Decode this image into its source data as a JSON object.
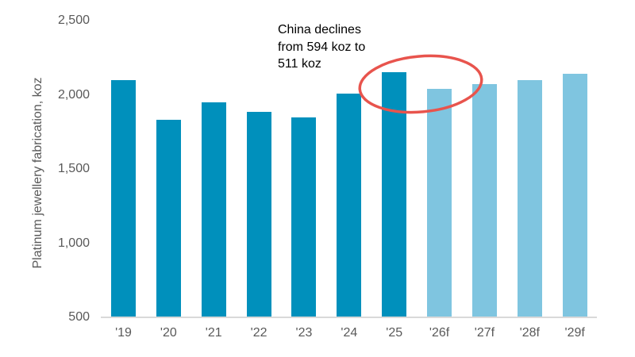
{
  "chart_data": {
    "type": "bar",
    "title": "",
    "ylabel": "Platinum jewellery fabrication, koz",
    "xlabel": "",
    "categories": [
      "'19",
      "'20",
      "'21",
      "'22",
      "'23",
      "'24",
      "'25",
      "'26f",
      "'27f",
      "'28f",
      "'29f"
    ],
    "values": [
      2100,
      1830,
      1950,
      1885,
      1850,
      2010,
      2155,
      2040,
      2070,
      2100,
      2140
    ],
    "bar_kind": [
      "actual",
      "actual",
      "actual",
      "actual",
      "actual",
      "actual",
      "actual",
      "forecast",
      "forecast",
      "forecast",
      "forecast"
    ],
    "ylim": [
      500,
      2500
    ],
    "y_ticks": [
      2500,
      2000,
      1500,
      1000,
      500
    ],
    "y_tick_labels": [
      "2,500",
      "2,000",
      "1,500",
      "1,000",
      "500"
    ],
    "grid": false,
    "legend": "none",
    "annotation": {
      "text": "China declines\nfrom 594 koz to\n511 koz",
      "circled_categories": [
        "'25",
        "'26f"
      ]
    },
    "colors": {
      "actual": "#0090BC",
      "forecast": "#7FC5E0",
      "annotation_red": "#E8544D",
      "axis_line": "#D9D9D9",
      "tick_text": "#595959"
    }
  }
}
